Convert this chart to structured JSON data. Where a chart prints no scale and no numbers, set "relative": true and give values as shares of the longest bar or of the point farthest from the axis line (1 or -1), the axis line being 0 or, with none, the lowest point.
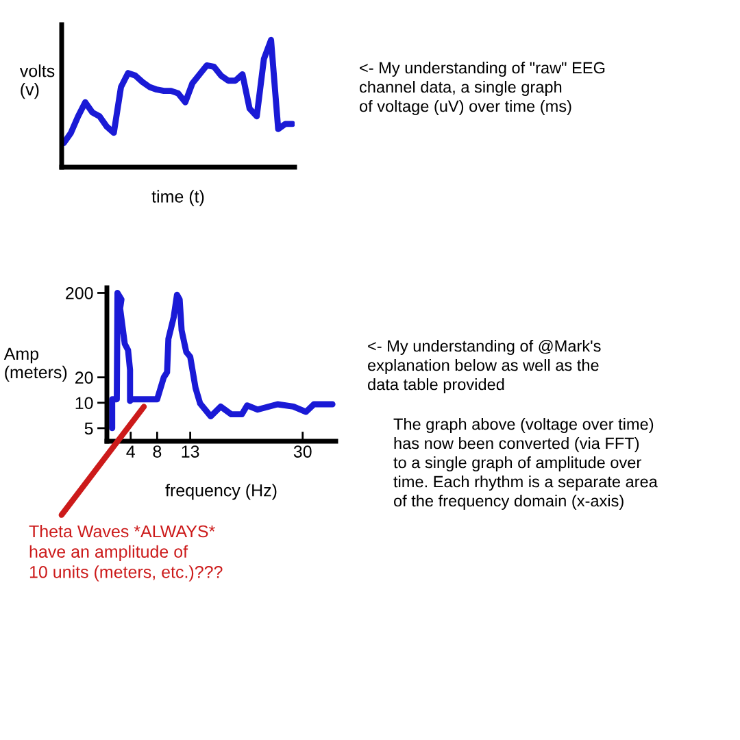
{
  "chart_data": [
    {
      "type": "line",
      "relative": true,
      "xlabel": "time (t)",
      "ylabel": "volts\n(v)",
      "color": "#1a1ad6",
      "grid": false,
      "categories": [
        null,
        null,
        null,
        null,
        null,
        null,
        null,
        null,
        null,
        null,
        null,
        null,
        null,
        null,
        null,
        null,
        null,
        null,
        null,
        null,
        null,
        null,
        null,
        null,
        null,
        null,
        null,
        null,
        null,
        null,
        null,
        null,
        null
      ],
      "values": [
        0.19,
        0.27,
        0.4,
        0.51,
        0.43,
        0.4,
        0.32,
        0.27,
        0.63,
        0.74,
        0.72,
        0.67,
        0.63,
        0.61,
        0.6,
        0.6,
        0.58,
        0.51,
        0.66,
        0.73,
        0.8,
        0.79,
        0.72,
        0.68,
        0.68,
        0.73,
        0.46,
        0.4,
        0.85,
        1,
        0.3,
        0.34,
        0.34
      ],
      "annotations": [
        "<- My understanding of \"raw\" EEG\nchannel data, a single graph\nof voltage (uV) over time (ms)"
      ]
    },
    {
      "type": "line",
      "xlabel": "frequency (Hz)",
      "ylabel": "Amp\n(meters)",
      "color": "#1a1ad6",
      "log": "y",
      "grid": false,
      "xlim": [
        0.4,
        35
      ],
      "ylim": [
        3.5,
        230
      ],
      "xticks": [
        4,
        8,
        13,
        30
      ],
      "yticks": [
        5,
        10,
        20,
        200
      ],
      "x": [
        1.2,
        1.2,
        1.9,
        2.0,
        2.6,
        2.4,
        3.1,
        3.6,
        3.9,
        3.9,
        4.1,
        8.0,
        9.0,
        9.5,
        9.7,
        10.5,
        11.0,
        11.4,
        11.7,
        12.4,
        13.0,
        13.8,
        14.5,
        16.1,
        17.6,
        19.2,
        20.8,
        21.6,
        23.2,
        26.2,
        28.6,
        30.5,
        31.7,
        34.5
      ],
      "values": [
        5,
        11,
        11,
        200,
        167,
        131,
        50,
        42,
        24.5,
        10.5,
        11,
        11,
        20,
        23,
        57,
        103,
        190,
        167,
        72,
        40,
        35,
        15,
        9.8,
        6.9,
        9,
        7.3,
        7.3,
        9.3,
        8.3,
        9.6,
        9,
        7.8,
        9.6,
        9.6
      ],
      "annotations": [
        "<- My understanding of @Mark's\nexplanation below as well as the\ndata table provided",
        "The graph above (voltage over time)\nhas now been converted (via FFT)\nto a single graph of amplitude over\ntime. Each rhythm is a separate area\nof the frequency domain (x-axis)",
        {
          "text": "Theta Waves *ALWAYS*\nhave an amplitude of\n10 units (meters, etc.)???",
          "x": 6,
          "y": 9
        }
      ]
    }
  ]
}
